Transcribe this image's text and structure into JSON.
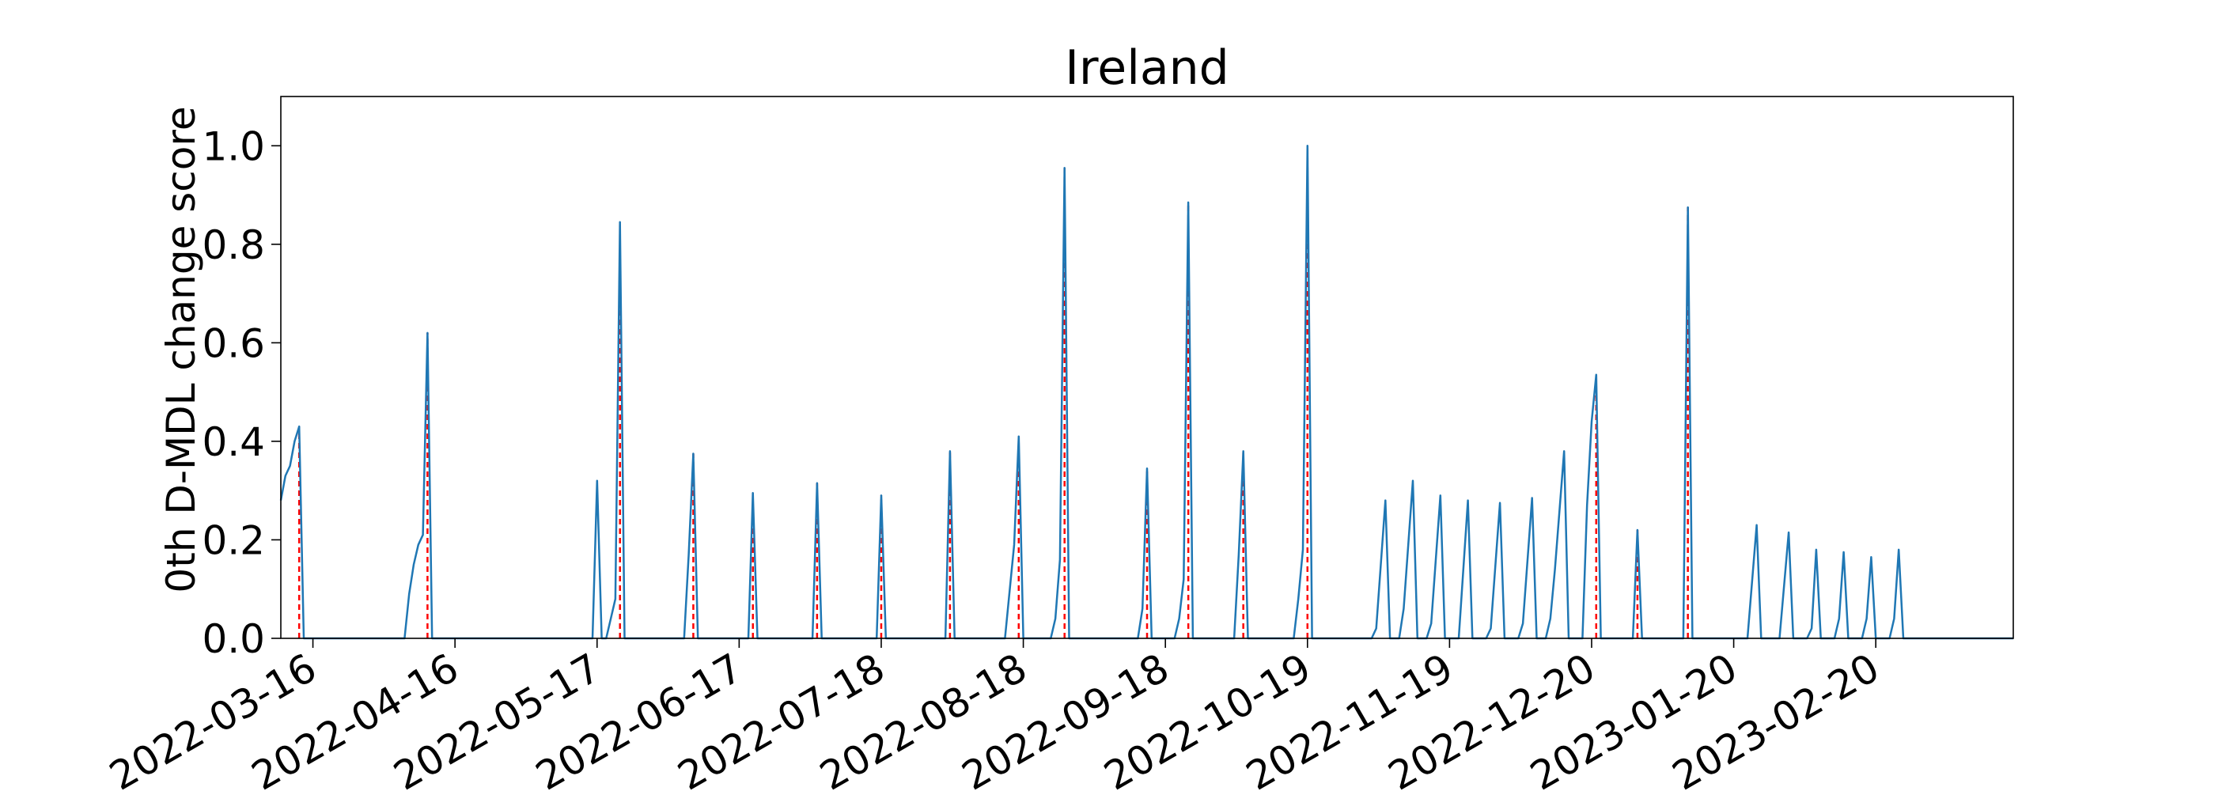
{
  "chart_data": {
    "type": "line",
    "title": "Ireland",
    "xlabel": "",
    "ylabel": "0th D-MDL change score",
    "x_axis": {
      "type": "date",
      "range": [
        "2022-03-09",
        "2023-03-22"
      ],
      "ticks": [
        "2022-03-16",
        "2022-04-16",
        "2022-05-17",
        "2022-06-17",
        "2022-07-18",
        "2022-08-18",
        "2022-09-18",
        "2022-10-19",
        "2022-11-19",
        "2022-12-20",
        "2023-01-20",
        "2023-02-20"
      ],
      "tick_label_rotation": 30
    },
    "y_axis": {
      "range": [
        0,
        1.1
      ],
      "ticks": [
        0.0,
        0.2,
        0.4,
        0.6,
        0.8,
        1.0
      ],
      "tick_labels": [
        "0.0",
        "0.2",
        "0.4",
        "0.6",
        "0.8",
        "1.0"
      ]
    },
    "grid": false,
    "legend": "none",
    "series": [
      {
        "color": "#1f77b4",
        "style": "solid",
        "points": [
          [
            "2022-03-09",
            0.28
          ],
          [
            "2022-03-10",
            0.33
          ],
          [
            "2022-03-11",
            0.35
          ],
          [
            "2022-03-12",
            0.4
          ],
          [
            "2022-03-13",
            0.43
          ],
          [
            "2022-03-14",
            0.0
          ],
          [
            "2022-04-05",
            0.0
          ],
          [
            "2022-04-06",
            0.09
          ],
          [
            "2022-04-07",
            0.15
          ],
          [
            "2022-04-08",
            0.19
          ],
          [
            "2022-04-09",
            0.21
          ],
          [
            "2022-04-10",
            0.62
          ],
          [
            "2022-04-11",
            0.0
          ],
          [
            "2022-05-16",
            0.0
          ],
          [
            "2022-05-17",
            0.32
          ],
          [
            "2022-05-18",
            0.0
          ],
          [
            "2022-05-19",
            0.0
          ],
          [
            "2022-05-20",
            0.04
          ],
          [
            "2022-05-21",
            0.08
          ],
          [
            "2022-05-22",
            0.845
          ],
          [
            "2022-05-23",
            0.0
          ],
          [
            "2022-06-05",
            0.0
          ],
          [
            "2022-06-06",
            0.17
          ],
          [
            "2022-06-07",
            0.375
          ],
          [
            "2022-06-08",
            0.0
          ],
          [
            "2022-06-19",
            0.0
          ],
          [
            "2022-06-20",
            0.295
          ],
          [
            "2022-06-21",
            0.0
          ],
          [
            "2022-07-03",
            0.0
          ],
          [
            "2022-07-04",
            0.315
          ],
          [
            "2022-07-05",
            0.0
          ],
          [
            "2022-07-17",
            0.0
          ],
          [
            "2022-07-18",
            0.29
          ],
          [
            "2022-07-19",
            0.0
          ],
          [
            "2022-08-01",
            0.0
          ],
          [
            "2022-08-02",
            0.38
          ],
          [
            "2022-08-03",
            0.0
          ],
          [
            "2022-08-14",
            0.0
          ],
          [
            "2022-08-16",
            0.19
          ],
          [
            "2022-08-17",
            0.41
          ],
          [
            "2022-08-18",
            0.0
          ],
          [
            "2022-08-24",
            0.0
          ],
          [
            "2022-08-25",
            0.04
          ],
          [
            "2022-08-26",
            0.16
          ],
          [
            "2022-08-27",
            0.955
          ],
          [
            "2022-08-28",
            0.0
          ],
          [
            "2022-09-12",
            0.0
          ],
          [
            "2022-09-13",
            0.06
          ],
          [
            "2022-09-14",
            0.345
          ],
          [
            "2022-09-15",
            0.0
          ],
          [
            "2022-09-20",
            0.0
          ],
          [
            "2022-09-21",
            0.04
          ],
          [
            "2022-09-22",
            0.12
          ],
          [
            "2022-09-23",
            0.885
          ],
          [
            "2022-09-24",
            0.0
          ],
          [
            "2022-10-03",
            0.0
          ],
          [
            "2022-10-04",
            0.17
          ],
          [
            "2022-10-05",
            0.38
          ],
          [
            "2022-10-06",
            0.0
          ],
          [
            "2022-10-16",
            0.0
          ],
          [
            "2022-10-17",
            0.08
          ],
          [
            "2022-10-18",
            0.18
          ],
          [
            "2022-10-19",
            1.0
          ],
          [
            "2022-10-20",
            0.0
          ],
          [
            "2022-11-02",
            0.0
          ],
          [
            "2022-11-03",
            0.02
          ],
          [
            "2022-11-05",
            0.28
          ],
          [
            "2022-11-06",
            0.0
          ],
          [
            "2022-11-08",
            0.0
          ],
          [
            "2022-11-09",
            0.06
          ],
          [
            "2022-11-11",
            0.32
          ],
          [
            "2022-11-12",
            0.0
          ],
          [
            "2022-11-14",
            0.0
          ],
          [
            "2022-11-15",
            0.03
          ],
          [
            "2022-11-17",
            0.29
          ],
          [
            "2022-11-18",
            0.0
          ],
          [
            "2022-11-21",
            0.0
          ],
          [
            "2022-11-23",
            0.28
          ],
          [
            "2022-11-24",
            0.0
          ],
          [
            "2022-11-27",
            0.0
          ],
          [
            "2022-11-28",
            0.02
          ],
          [
            "2022-11-30",
            0.275
          ],
          [
            "2022-12-01",
            0.0
          ],
          [
            "2022-12-04",
            0.0
          ],
          [
            "2022-12-05",
            0.03
          ],
          [
            "2022-12-07",
            0.285
          ],
          [
            "2022-12-08",
            0.0
          ],
          [
            "2022-12-10",
            0.0
          ],
          [
            "2022-12-11",
            0.04
          ],
          [
            "2022-12-12",
            0.14
          ],
          [
            "2022-12-14",
            0.38
          ],
          [
            "2022-12-15",
            0.0
          ],
          [
            "2022-12-18",
            0.0
          ],
          [
            "2022-12-19",
            0.27
          ],
          [
            "2022-12-20",
            0.44
          ],
          [
            "2022-12-21",
            0.535
          ],
          [
            "2022-12-22",
            0.0
          ],
          [
            "2022-12-29",
            0.0
          ],
          [
            "2022-12-30",
            0.22
          ],
          [
            "2022-12-31",
            0.0
          ],
          [
            "2023-01-09",
            0.0
          ],
          [
            "2023-01-10",
            0.875
          ],
          [
            "2023-01-11",
            0.0
          ],
          [
            "2023-01-23",
            0.0
          ],
          [
            "2023-01-25",
            0.23
          ],
          [
            "2023-01-26",
            0.0
          ],
          [
            "2023-01-30",
            0.0
          ],
          [
            "2023-02-01",
            0.215
          ],
          [
            "2023-02-02",
            0.0
          ],
          [
            "2023-02-05",
            0.0
          ],
          [
            "2023-02-06",
            0.02
          ],
          [
            "2023-02-07",
            0.18
          ],
          [
            "2023-02-08",
            0.0
          ],
          [
            "2023-02-11",
            0.0
          ],
          [
            "2023-02-12",
            0.04
          ],
          [
            "2023-02-13",
            0.175
          ],
          [
            "2023-02-14",
            0.0
          ],
          [
            "2023-02-17",
            0.0
          ],
          [
            "2023-02-18",
            0.04
          ],
          [
            "2023-02-19",
            0.165
          ],
          [
            "2023-02-20",
            0.0
          ],
          [
            "2023-02-23",
            0.0
          ],
          [
            "2023-02-24",
            0.04
          ],
          [
            "2023-02-25",
            0.18
          ],
          [
            "2023-02-26",
            0.0
          ],
          [
            "2023-03-22",
            0.0
          ]
        ]
      }
    ],
    "change_points": {
      "color": "#ff0000",
      "style": "dashed",
      "dates": [
        "2022-03-13",
        "2022-04-10",
        "2022-05-22",
        "2022-06-07",
        "2022-06-20",
        "2022-07-04",
        "2022-07-18",
        "2022-08-02",
        "2022-08-17",
        "2022-08-27",
        "2022-09-14",
        "2022-09-23",
        "2022-10-05",
        "2022-10-19",
        "2022-12-21",
        "2022-12-30",
        "2023-01-10"
      ],
      "values": [
        0.43,
        0.62,
        0.845,
        0.375,
        0.295,
        0.315,
        0.29,
        0.38,
        0.41,
        0.955,
        0.345,
        0.885,
        0.38,
        1.0,
        0.535,
        0.22,
        0.875
      ]
    }
  }
}
